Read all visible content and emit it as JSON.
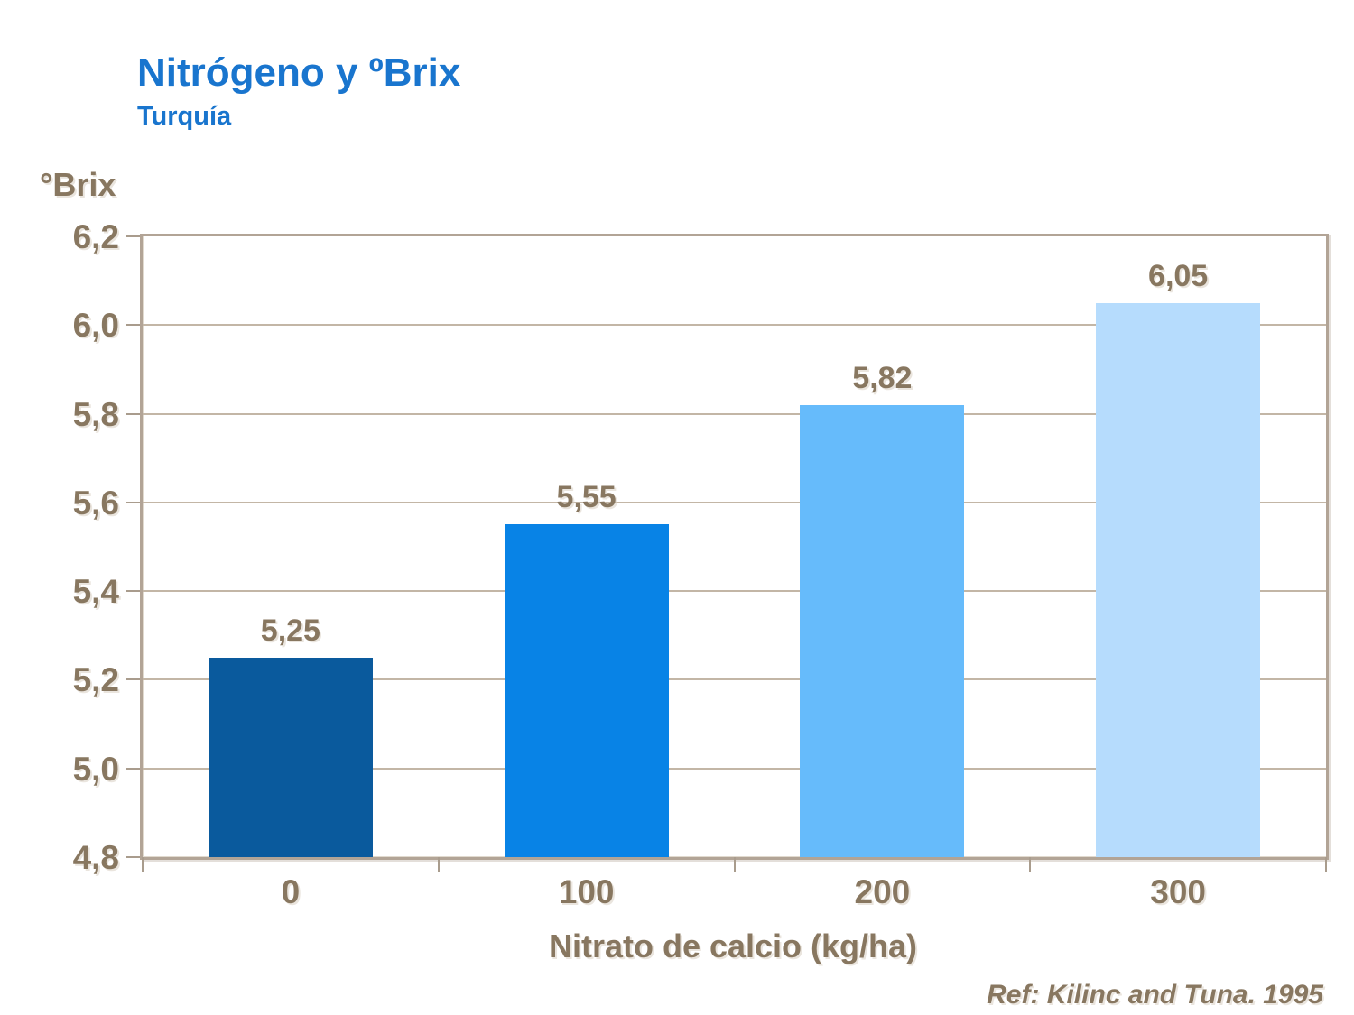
{
  "header": {
    "title": "Nitrógeno y ºBrix",
    "subtitle": "Turquía"
  },
  "footer": {
    "reference": "Ref: Kilinc and Tuna. 1995"
  },
  "chart_data": {
    "type": "bar",
    "title": "Nitrógeno y ºBrix",
    "subtitle": "Turquía",
    "categories": [
      "0",
      "100",
      "200",
      "300"
    ],
    "values": [
      5.25,
      5.55,
      5.82,
      6.05
    ],
    "value_labels": [
      "5,25",
      "5,55",
      "5,82",
      "6,05"
    ],
    "bar_colors": [
      "#0a5a9d",
      "#0883e6",
      "#66bbfb",
      "#b6dcfd"
    ],
    "xlabel": "Nitrato de calcio (kg/ha)",
    "ylabel": "°Brix",
    "ylim": [
      4.8,
      6.2
    ],
    "ytick_step": 0.2,
    "ytick_labels": [
      "6,2",
      "6,0",
      "5,8",
      "5,6",
      "5,4",
      "5,2",
      "5,0",
      "4,8"
    ],
    "grid": true,
    "legend": false,
    "reference": "Ref: Kilinc and Tuna. 1995"
  },
  "colors": {
    "title_blue": "#1975ce",
    "text_brown": "#887760",
    "gridline": "#c3b6a6",
    "frame": "#b2a496"
  }
}
